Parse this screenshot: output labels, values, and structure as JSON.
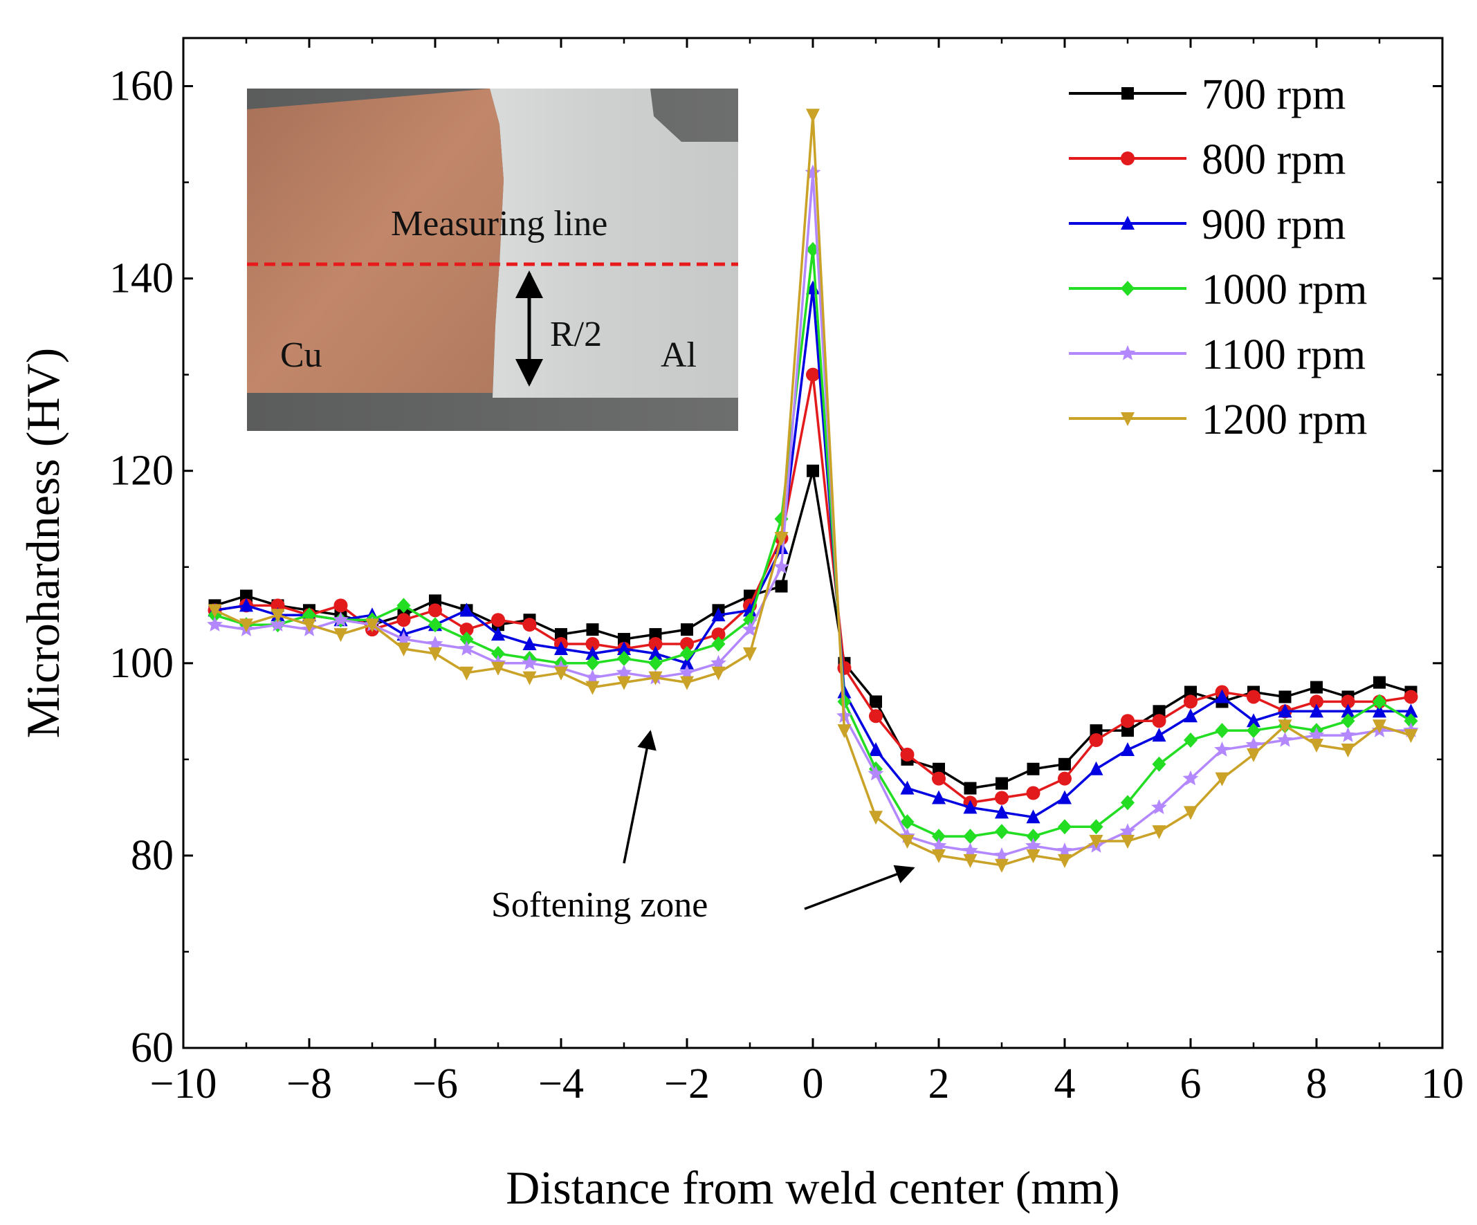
{
  "chart_data": {
    "type": "line",
    "xlabel": "Distance from weld center (mm)",
    "ylabel": "Microhardness (HV)",
    "xlim": [
      -10,
      10
    ],
    "ylim": [
      60,
      165
    ],
    "xticks": [
      -10,
      -8,
      -6,
      -4,
      -2,
      0,
      2,
      4,
      6,
      8,
      10
    ],
    "xtick_labels": [
      "−10",
      "−8",
      "−6",
      "−4",
      "−2",
      "0",
      "2",
      "4",
      "6",
      "8",
      "10"
    ],
    "yticks": [
      60,
      80,
      100,
      120,
      140,
      160
    ],
    "ytick_labels": [
      "60",
      "80",
      "100",
      "120",
      "140",
      "160"
    ],
    "x": [
      -9.5,
      -9,
      -8.5,
      -8,
      -7.5,
      -7,
      -6.5,
      -6,
      -5.5,
      -5,
      -4.5,
      -4,
      -3.5,
      -3,
      -2.5,
      -2,
      -1.5,
      -1,
      -0.5,
      0,
      0.5,
      1,
      1.5,
      2,
      2.5,
      3,
      3.5,
      4,
      4.5,
      5,
      5.5,
      6,
      6.5,
      7,
      7.5,
      8,
      8.5,
      9,
      9.5
    ],
    "legend_position": "top-right",
    "series": [
      {
        "name": "700 rpm",
        "color": "#000000",
        "marker": "square",
        "values": [
          106,
          107,
          106,
          105.5,
          105,
          104,
          105,
          106.5,
          105.5,
          104,
          104.5,
          103,
          103.5,
          102.5,
          103,
          103.5,
          105.5,
          107,
          108,
          120,
          100,
          96,
          90,
          89,
          87,
          87.5,
          89,
          89.5,
          93,
          93,
          95,
          97,
          96,
          97,
          96.5,
          97.5,
          96.5,
          98,
          97
        ]
      },
      {
        "name": "800 rpm",
        "color": "#e31a1c",
        "marker": "circle",
        "values": [
          105.5,
          106,
          106,
          105,
          106,
          103.5,
          104.5,
          105.5,
          103.5,
          104.5,
          104,
          102,
          102,
          101.5,
          102,
          102,
          103,
          106,
          113,
          130,
          99.5,
          94.5,
          90.5,
          88,
          85.5,
          86,
          86.5,
          88,
          92,
          94,
          94,
          96,
          97,
          96.5,
          95,
          96,
          96,
          96,
          96.5
        ]
      },
      {
        "name": "900 rpm",
        "color": "#0000e0",
        "marker": "triangle-up",
        "values": [
          105.5,
          106,
          105,
          105,
          104.5,
          105,
          103,
          104,
          105.5,
          103,
          102,
          101.5,
          101,
          101.5,
          101,
          100,
          105,
          105.5,
          112,
          139,
          97,
          91,
          87,
          86,
          85,
          84.5,
          84,
          86,
          89,
          91,
          92.5,
          94.5,
          96.5,
          94,
          95,
          95,
          95,
          95,
          95
        ]
      },
      {
        "name": "1000 rpm",
        "color": "#22dd22",
        "marker": "diamond",
        "values": [
          105,
          104,
          104,
          105,
          104.5,
          104.5,
          106,
          104,
          102.5,
          101,
          100.5,
          100,
          100,
          100.5,
          100,
          101,
          102,
          104.5,
          115,
          143,
          96,
          89,
          83.5,
          82,
          82,
          82.5,
          82,
          83,
          83,
          85.5,
          89.5,
          92,
          93,
          93,
          93.5,
          93,
          94,
          96,
          94
        ]
      },
      {
        "name": "1100 rpm",
        "color": "#b388ff",
        "marker": "star",
        "values": [
          104,
          103.5,
          104,
          103.5,
          104.5,
          104,
          102.5,
          102,
          101.5,
          100,
          100,
          99.5,
          98.5,
          99,
          98.5,
          99,
          100,
          103.5,
          110,
          151,
          94.5,
          88.5,
          82,
          81,
          80.5,
          80,
          81,
          80.5,
          81,
          82.5,
          85,
          88,
          91,
          91.5,
          92,
          92.5,
          92.5,
          93,
          93
        ]
      },
      {
        "name": "1200 rpm",
        "color": "#c9a227",
        "marker": "triangle-down",
        "values": [
          105.5,
          104,
          105,
          104,
          103,
          104,
          101.5,
          101,
          99,
          99.5,
          98.5,
          99,
          97.5,
          98,
          98.5,
          98,
          99,
          101,
          113,
          157,
          93,
          84,
          81.5,
          80,
          79.5,
          79,
          80,
          79.5,
          81.5,
          81.5,
          82.5,
          84.5,
          88,
          90.5,
          93.5,
          91.5,
          91,
          93.5,
          92.5
        ]
      }
    ],
    "annotations": [
      {
        "text": "Softening zone"
      }
    ],
    "inset": {
      "measuring_line_label": "Measuring line",
      "depth_label": "R/2",
      "left_material": "Cu",
      "right_material": "Al",
      "line_color": "#e8191a"
    }
  }
}
